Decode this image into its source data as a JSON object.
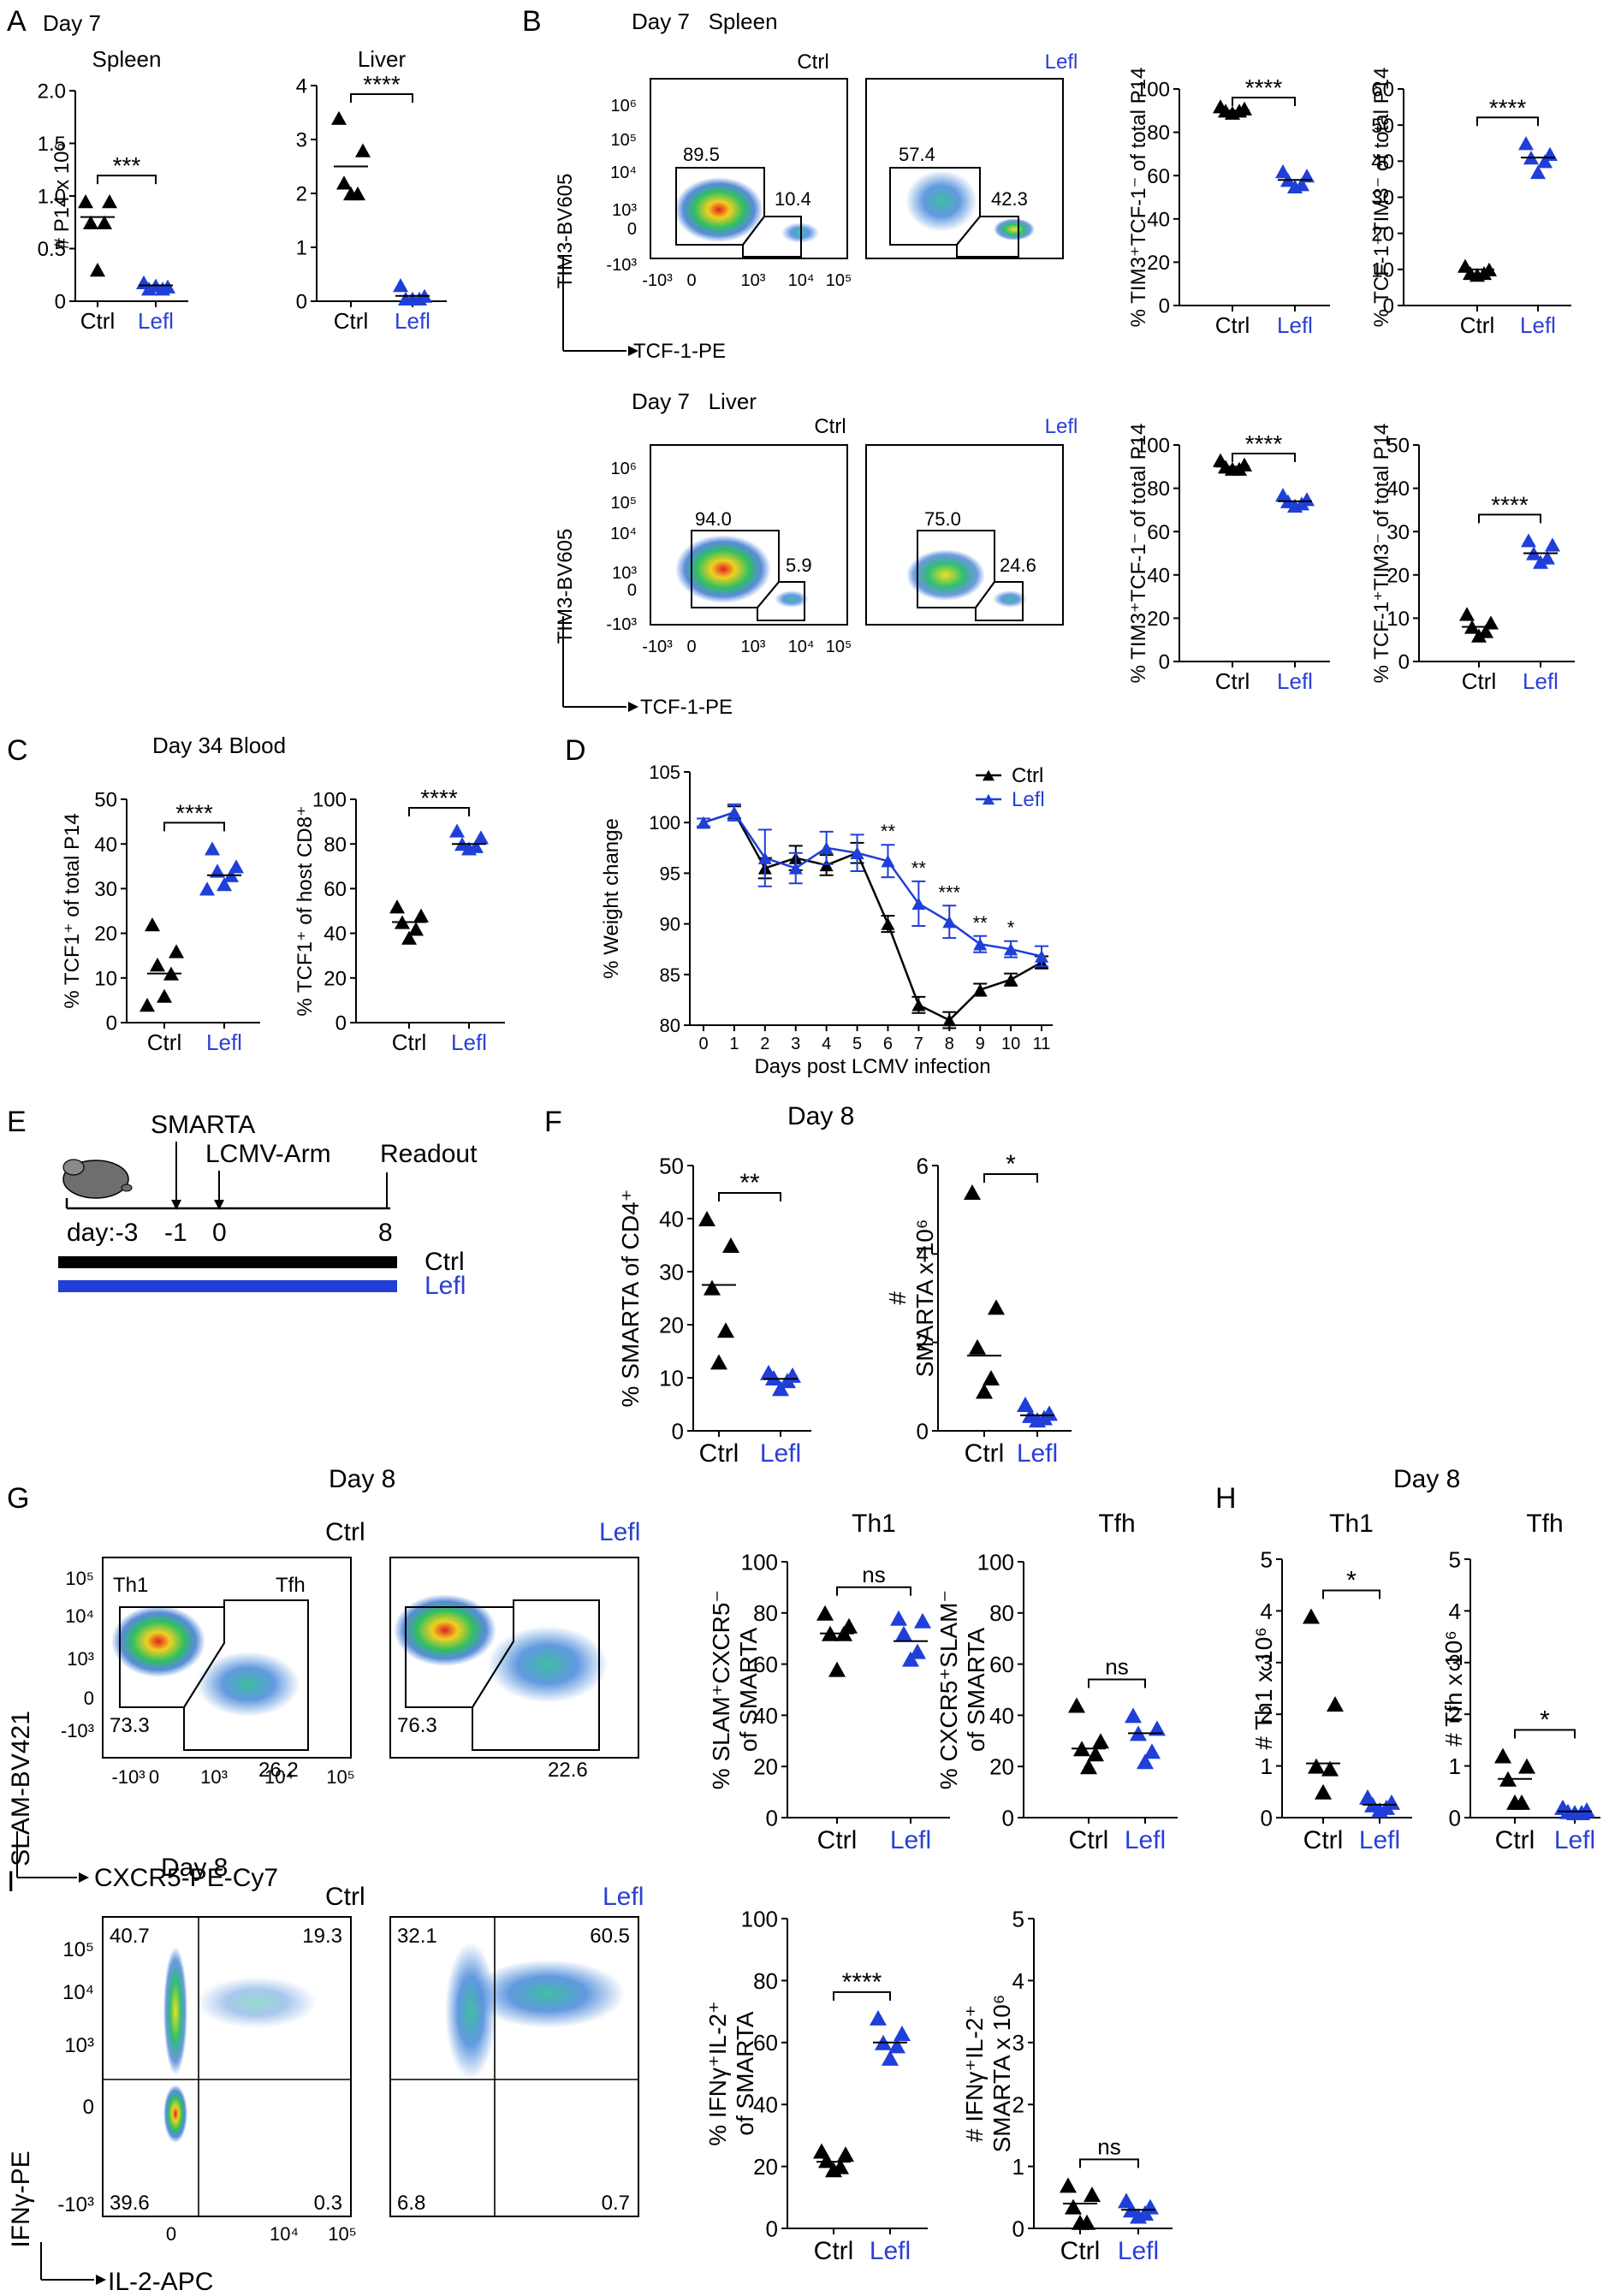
{
  "colors": {
    "ctrl": "#000000",
    "lefl": "#1f3fd8",
    "blue_label": "#2a3fd6"
  },
  "panels": {
    "A": {
      "letter": "A",
      "day": "Day 7"
    },
    "B": {
      "letter": "B",
      "day_spleen": "Day 7   Spleen",
      "day_liver": "Day 7   Liver",
      "ctrl": "Ctrl",
      "lefl": "Lefl",
      "y_axis": "TIM3-BV605",
      "x_axis_top": "TCF-1-PE",
      "x_axis_bottom": "TCF-1-PE"
    },
    "C": {
      "letter": "C",
      "day": "Day 34 Blood"
    },
    "D": {
      "letter": "D"
    },
    "E": {
      "letter": "E",
      "smarta": "SMARTA",
      "lcmv": "LCMV-Arm",
      "readout": "Readout",
      "day_label": "day:-3",
      "tm1": "-1",
      "t0": "0",
      "t8": "8",
      "ctrl": "Ctrl",
      "lefl": "Lefl"
    },
    "F": {
      "letter": "F",
      "day": "Day 8"
    },
    "G": {
      "letter": "G",
      "day": "Day 8",
      "ctrl": "Ctrl",
      "lefl": "Lefl",
      "th1": "Th1",
      "tfh": "Tfh",
      "y_axis": "SLAM-BV421",
      "x_axis": "CXCR5-PE-Cy7",
      "ctrl_th1": "73.3",
      "ctrl_tfh": "26.2",
      "lefl_th1": "76.3",
      "lefl_tfh": "22.6"
    },
    "H": {
      "letter": "H",
      "day": "Day 8"
    },
    "I": {
      "letter": "I",
      "day": "Day 8",
      "ctrl": "Ctrl",
      "lefl": "Lefl",
      "y_axis": "IFNγ-PE",
      "x_axis": "IL-2-APC",
      "ctrl_q": [
        "40.7",
        "19.3",
        "39.6",
        "0.3"
      ],
      "lefl_q": [
        "32.1",
        "60.5",
        "6.8",
        "0.7"
      ]
    }
  },
  "flow_spleen": {
    "ctrl_big": "89.5",
    "ctrl_small": "10.4",
    "lefl_big": "57.4",
    "lefl_small": "42.3"
  },
  "flow_liver": {
    "ctrl_big": "94.0",
    "ctrl_small": "5.9",
    "lefl_big": "75.0",
    "lefl_small": "24.6"
  },
  "flow_ticks_tcf": [
    "-10³",
    "0",
    "10³",
    "10⁴",
    "10⁵"
  ],
  "flow_ticks_tim3": [
    "10⁶",
    "10⁵",
    "10⁴",
    "10³",
    "0",
    "-10³"
  ],
  "flow_ticks_slam": [
    "10⁵",
    "10⁴",
    "10³",
    "0",
    "-10³"
  ],
  "flow_ticks_cxcr5": [
    "-10³",
    "0",
    "10³",
    "10⁴",
    "10⁵"
  ],
  "flow_ticks_ifn": [
    "10⁵",
    "10⁴",
    "10³",
    "0",
    "-10³"
  ],
  "flow_ticks_il2": [
    "0",
    "10⁴",
    "10⁵"
  ],
  "chart_data": [
    {
      "id": "A_spleen",
      "type": "scatter",
      "title": "Spleen",
      "ylabel": "# P14 x 10⁶",
      "ylim": [
        0,
        2.0
      ],
      "yticks": [
        "0",
        "0.5",
        "1.0",
        "1.5",
        "2.0"
      ],
      "categories": [
        "Ctrl",
        "Lefl"
      ],
      "sig": "***",
      "series": [
        {
          "name": "Ctrl",
          "values": [
            0.95,
            0.95,
            0.75,
            0.75,
            0.3
          ],
          "mean": 0.8
        },
        {
          "name": "Lefl",
          "values": [
            0.18,
            0.14,
            0.12,
            0.12,
            0.15
          ],
          "mean": 0.15
        }
      ]
    },
    {
      "id": "A_liver",
      "type": "scatter",
      "title": "Liver",
      "ylabel": "",
      "ylim": [
        0,
        4
      ],
      "yticks": [
        "0",
        "1",
        "2",
        "3",
        "4"
      ],
      "categories": [
        "Ctrl",
        "Lefl"
      ],
      "sig": "****",
      "series": [
        {
          "name": "Ctrl",
          "values": [
            3.4,
            2.8,
            2.2,
            2.0,
            2.0
          ],
          "mean": 2.5
        },
        {
          "name": "Lefl",
          "values": [
            0.3,
            0.1,
            0.05,
            0.05,
            0.05
          ],
          "mean": 0.1
        }
      ]
    },
    {
      "id": "B_spleen_1",
      "type": "scatter",
      "ylabel": "% TIM3⁺TCF-1⁻ of total P14",
      "ylim": [
        0,
        100
      ],
      "yticks": [
        "0",
        "20",
        "40",
        "60",
        "80",
        "100"
      ],
      "categories": [
        "Ctrl",
        "Lefl"
      ],
      "sig": "****",
      "series": [
        {
          "name": "Ctrl",
          "values": [
            92,
            91,
            90,
            90,
            89
          ],
          "mean": 90
        },
        {
          "name": "Lefl",
          "values": [
            62,
            60,
            58,
            56,
            55
          ],
          "mean": 58
        }
      ]
    },
    {
      "id": "B_spleen_2",
      "type": "scatter",
      "ylabel": "% TCF-1⁺TIM3⁻ of total P14",
      "ylim": [
        0,
        60
      ],
      "yticks": [
        "0",
        "10",
        "20",
        "30",
        "40",
        "50",
        "60"
      ],
      "categories": [
        "Ctrl",
        "Lefl"
      ],
      "sig": "****",
      "series": [
        {
          "name": "Ctrl",
          "values": [
            11,
            10,
            9,
            9,
            8.5
          ],
          "mean": 10
        },
        {
          "name": "Lefl",
          "values": [
            45,
            42,
            41,
            40,
            37
          ],
          "mean": 41
        }
      ]
    },
    {
      "id": "B_liver_1",
      "type": "scatter",
      "ylabel": "% TIM3⁺TCF-1⁻ of total P14",
      "ylim": [
        0,
        100
      ],
      "yticks": [
        "0",
        "20",
        "40",
        "60",
        "80",
        "100"
      ],
      "categories": [
        "Ctrl",
        "Lefl"
      ],
      "sig": "****",
      "series": [
        {
          "name": "Ctrl",
          "values": [
            93,
            91,
            90,
            89,
            89
          ],
          "mean": 90
        },
        {
          "name": "Lefl",
          "values": [
            77,
            75,
            74,
            73,
            72
          ],
          "mean": 74
        }
      ]
    },
    {
      "id": "B_liver_2",
      "type": "scatter",
      "ylabel": "% TCF-1⁺TIM3⁻ of total P14",
      "ylim": [
        0,
        50
      ],
      "yticks": [
        "0",
        "10",
        "20",
        "30",
        "40",
        "50"
      ],
      "categories": [
        "Ctrl",
        "Lefl"
      ],
      "sig": "****",
      "series": [
        {
          "name": "Ctrl",
          "values": [
            11,
            9,
            8,
            7,
            6
          ],
          "mean": 8
        },
        {
          "name": "Lefl",
          "values": [
            28,
            27,
            25,
            24,
            23
          ],
          "mean": 25
        }
      ]
    },
    {
      "id": "C_1",
      "type": "scatter",
      "ylabel": "% TCF1⁺ of total P14",
      "ylim": [
        0,
        50
      ],
      "yticks": [
        "0",
        "10",
        "20",
        "30",
        "40",
        "50"
      ],
      "categories": [
        "Ctrl",
        "Lefl"
      ],
      "sig": "****",
      "series": [
        {
          "name": "Ctrl",
          "values": [
            22,
            16,
            13,
            11,
            6,
            4
          ],
          "mean": 11
        },
        {
          "name": "Lefl",
          "values": [
            39,
            35,
            34,
            33,
            31,
            30
          ],
          "mean": 33
        }
      ]
    },
    {
      "id": "C_2",
      "type": "scatter",
      "ylabel": "% TCF1⁺ of host CD8⁺",
      "ylim": [
        0,
        100
      ],
      "yticks": [
        "0",
        "20",
        "40",
        "60",
        "80",
        "100"
      ],
      "categories": [
        "Ctrl",
        "Lefl"
      ],
      "sig": "****",
      "series": [
        {
          "name": "Ctrl",
          "values": [
            52,
            48,
            45,
            42,
            38
          ],
          "mean": 45
        },
        {
          "name": "Lefl",
          "values": [
            86,
            83,
            80,
            79,
            78
          ],
          "mean": 80
        }
      ]
    },
    {
      "id": "D",
      "type": "line",
      "ylabel": "% Weight change",
      "xlabel": "Days post LCMV infection",
      "ylim": [
        80,
        105
      ],
      "yticks": [
        "80",
        "85",
        "90",
        "95",
        "100",
        "105"
      ],
      "x": [
        0,
        1,
        2,
        3,
        4,
        5,
        6,
        7,
        8,
        9,
        10,
        11
      ],
      "xticks": [
        "0",
        "1",
        "2",
        "3",
        "4",
        "5",
        "6",
        "7",
        "8",
        "9",
        "10",
        "11"
      ],
      "series": [
        {
          "name": "Ctrl",
          "values": [
            100,
            101,
            95.5,
            96.5,
            95.8,
            97,
            90,
            82,
            80.5,
            83.5,
            84.5,
            86.2
          ],
          "err": [
            0.4,
            0.6,
            1,
            1.2,
            1,
            1,
            0.8,
            0.8,
            0.8,
            0.6,
            0.6,
            0.6
          ]
        },
        {
          "name": "Lefl",
          "values": [
            100,
            101,
            96.5,
            95.5,
            97.5,
            97,
            96.2,
            92,
            90.2,
            88,
            87.5,
            86.8
          ],
          "err": [
            0.4,
            0.8,
            2.8,
            1.5,
            1.6,
            1.8,
            1.6,
            2.2,
            1.6,
            0.8,
            0.8,
            1
          ]
        }
      ],
      "sig": [
        {
          "x": 6,
          "label": "**"
        },
        {
          "x": 7,
          "label": "**"
        },
        {
          "x": 8,
          "label": "***"
        },
        {
          "x": 9,
          "label": "**"
        },
        {
          "x": 10,
          "label": "*"
        }
      ]
    },
    {
      "id": "F_1",
      "type": "scatter",
      "ylabel": "% SMARTA of CD4⁺",
      "ylim": [
        0,
        50
      ],
      "yticks": [
        "0",
        "10",
        "20",
        "30",
        "40",
        "50"
      ],
      "categories": [
        "Ctrl",
        "Lefl"
      ],
      "sig": "**",
      "series": [
        {
          "name": "Ctrl",
          "values": [
            40,
            35,
            27,
            19,
            13
          ],
          "mean": 27.5
        },
        {
          "name": "Lefl",
          "values": [
            11,
            10.5,
            10,
            9.5,
            8
          ],
          "mean": 9.8
        }
      ]
    },
    {
      "id": "F_2",
      "type": "scatter",
      "ylabel": "# SMARTA x 10⁶",
      "ylim": [
        0,
        6
      ],
      "yticks": [
        "0",
        "2",
        "4",
        "6"
      ],
      "categories": [
        "Ctrl",
        "Lefl"
      ],
      "sig": "*",
      "series": [
        {
          "name": "Ctrl",
          "values": [
            5.4,
            2.8,
            1.9,
            1.2,
            0.9
          ],
          "mean": 1.7
        },
        {
          "name": "Lefl",
          "values": [
            0.6,
            0.4,
            0.35,
            0.3,
            0.25
          ],
          "mean": 0.35
        }
      ]
    },
    {
      "id": "G_th1",
      "type": "scatter",
      "title": "Th1",
      "ylabel": "% SLAM⁺CXCR5⁻ of SMARTA",
      "ylim": [
        0,
        100
      ],
      "yticks": [
        "0",
        "20",
        "40",
        "60",
        "80",
        "100"
      ],
      "categories": [
        "Ctrl",
        "Lefl"
      ],
      "sig": "ns",
      "series": [
        {
          "name": "Ctrl",
          "values": [
            80,
            75,
            72,
            72,
            58
          ],
          "mean": 72
        },
        {
          "name": "Lefl",
          "values": [
            78,
            77,
            72,
            65,
            62
          ],
          "mean": 69
        }
      ]
    },
    {
      "id": "G_tfh",
      "type": "scatter",
      "title": "Tfh",
      "ylabel": "% CXCR5⁺SLAM⁻ of SMARTA",
      "ylim": [
        0,
        100
      ],
      "yticks": [
        "0",
        "20",
        "40",
        "60",
        "80",
        "100"
      ],
      "categories": [
        "Ctrl",
        "Lefl"
      ],
      "sig": "ns",
      "series": [
        {
          "name": "Ctrl",
          "values": [
            44,
            30,
            27,
            25,
            20
          ],
          "mean": 27
        },
        {
          "name": "Lefl",
          "values": [
            40,
            35,
            33,
            26,
            22
          ],
          "mean": 33
        }
      ]
    },
    {
      "id": "H_th1",
      "type": "scatter",
      "title": "Th1",
      "ylabel": "# Th1 x 10⁶",
      "ylim": [
        0,
        5
      ],
      "yticks": [
        "0",
        "1",
        "2",
        "3",
        "4",
        "5"
      ],
      "categories": [
        "Ctrl",
        "Lefl"
      ],
      "sig": "*",
      "series": [
        {
          "name": "Ctrl",
          "values": [
            3.9,
            2.2,
            1.0,
            0.95,
            0.5
          ],
          "mean": 1.05
        },
        {
          "name": "Lefl",
          "values": [
            0.4,
            0.3,
            0.25,
            0.2,
            0.15
          ],
          "mean": 0.25
        }
      ]
    },
    {
      "id": "H_tfh",
      "type": "scatter",
      "title": "Tfh",
      "ylabel": "# Tfh x 10⁶",
      "ylim": [
        0,
        5
      ],
      "yticks": [
        "0",
        "1",
        "2",
        "3",
        "4",
        "5"
      ],
      "categories": [
        "Ctrl",
        "Lefl"
      ],
      "sig": "*",
      "series": [
        {
          "name": "Ctrl",
          "values": [
            1.2,
            1.0,
            0.75,
            0.3,
            0.3
          ],
          "mean": 0.75
        },
        {
          "name": "Lefl",
          "values": [
            0.2,
            0.15,
            0.12,
            0.1,
            0.1
          ],
          "mean": 0.12
        }
      ]
    },
    {
      "id": "I_1",
      "type": "scatter",
      "ylabel": "% IFNγ⁺IL-2⁺ of SMARTA",
      "ylim": [
        0,
        100
      ],
      "yticks": [
        "0",
        "20",
        "40",
        "60",
        "80",
        "100"
      ],
      "categories": [
        "Ctrl",
        "Lefl"
      ],
      "sig": "****",
      "series": [
        {
          "name": "Ctrl",
          "values": [
            25,
            24,
            22,
            20,
            19
          ],
          "mean": 21.5
        },
        {
          "name": "Lefl",
          "values": [
            68,
            63,
            60,
            59,
            55
          ],
          "mean": 60
        }
      ]
    },
    {
      "id": "I_2",
      "type": "scatter",
      "ylabel": "# IFNγ⁺IL-2⁺ SMARTA x 10⁶",
      "ylim": [
        0,
        5
      ],
      "yticks": [
        "0",
        "1",
        "2",
        "3",
        "4",
        "5"
      ],
      "categories": [
        "Ctrl",
        "Lefl"
      ],
      "sig": "ns",
      "series": [
        {
          "name": "Ctrl",
          "values": [
            0.7,
            0.55,
            0.35,
            0.1,
            0.1
          ],
          "mean": 0.4
        },
        {
          "name": "Lefl",
          "values": [
            0.45,
            0.35,
            0.3,
            0.25,
            0.2
          ],
          "mean": 0.3
        }
      ]
    }
  ]
}
